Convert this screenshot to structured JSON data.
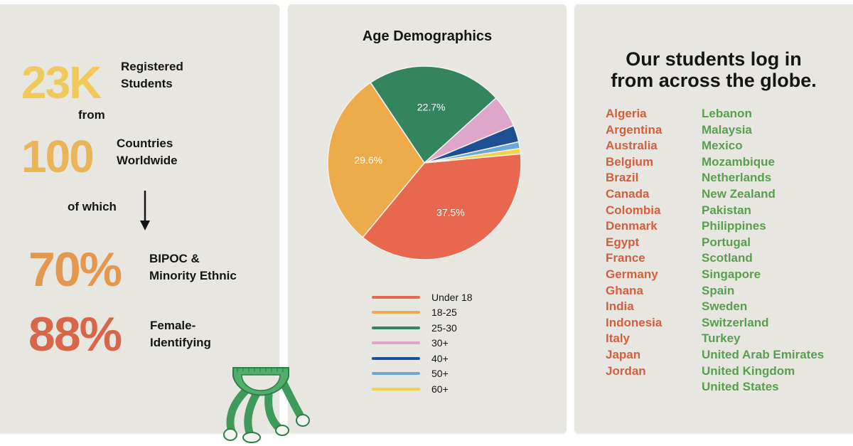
{
  "stats": {
    "registered": {
      "value": "23K",
      "label_line1": "Registered",
      "label_line2": "Students",
      "color": "#efc95a"
    },
    "from_text": "from",
    "countries": {
      "value": "100",
      "label_line1": "Countries",
      "label_line2": "Worldwide",
      "color": "#e9b558"
    },
    "of_which_text": "of which",
    "bipoc": {
      "value": "70%",
      "label_line1": "BIPOC &",
      "label_line2": "Minority Ethnic",
      "color": "#e3984e"
    },
    "female": {
      "value": "88%",
      "label_line1": "Female-",
      "label_line2": "Identifying",
      "color": "#d8674a"
    }
  },
  "chart_data": {
    "type": "pie",
    "title": "Age Demographics",
    "categories": [
      "Under 18",
      "18-25",
      "25-30",
      "30+",
      "40+",
      "50+",
      "60+"
    ],
    "values": [
      37.5,
      29.6,
      22.7,
      5.4,
      2.8,
      1.1,
      0.9
    ],
    "data_labels": [
      "37.5%",
      "29.6%",
      "22.7%",
      "",
      "",
      "",
      ""
    ],
    "colors": [
      "#e8684f",
      "#eeab4c",
      "#34845f",
      "#dea6c9",
      "#1f4f93",
      "#6ea6d6",
      "#f1d44a"
    ],
    "legend_position": "bottom"
  },
  "globe": {
    "title_line1": "Our students log in",
    "title_line2": "from across the globe.",
    "left_color": "#d0603f",
    "right_color": "#5a9e52",
    "countries_left": [
      "Algeria",
      "Argentina",
      "Australia",
      "Belgium",
      "Brazil",
      "Canada",
      "Colombia",
      "Denmark",
      "Egypt",
      "France",
      "Germany",
      "Ghana",
      "India",
      "Indonesia",
      "Italy",
      "Japan",
      "Jordan"
    ],
    "countries_right": [
      "Lebanon",
      "Malaysia",
      "Mexico",
      "Mozambique",
      "Netherlands",
      "New Zealand",
      "Pakistan",
      "Philippines",
      "Portugal",
      "Scotland",
      "Singapore",
      "Spain",
      "Sweden",
      "Switzerland",
      "Turkey",
      "United Arab Emirates",
      "United Kingdom",
      "United States"
    ]
  },
  "mascot": {
    "icon": "protractor-mascot-icon",
    "color": "#3f9a5c"
  }
}
